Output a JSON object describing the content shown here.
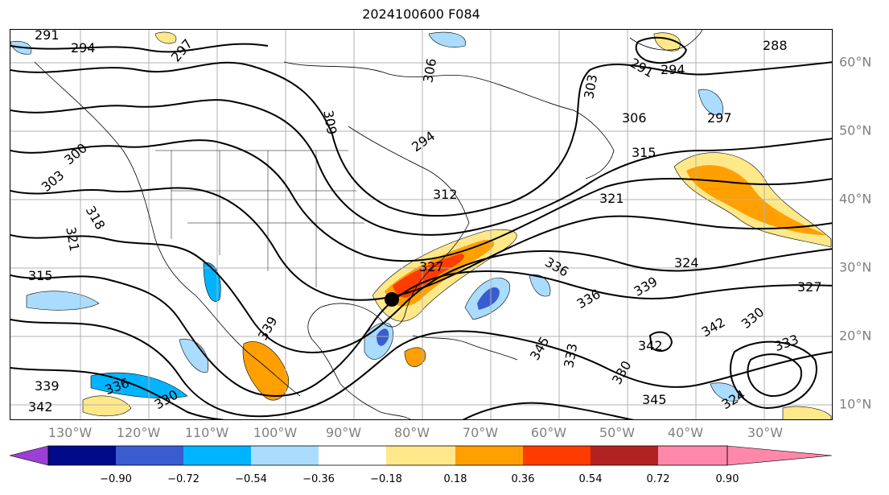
{
  "title": "2024100600 F084",
  "longitude_labels": [
    "130°W",
    "120°W",
    "110°W",
    "100°W",
    "90°W",
    "80°W",
    "70°W",
    "60°W",
    "50°W",
    "40°W",
    "30°W"
  ],
  "latitude_labels": [
    "60°N",
    "50°N",
    "40°N",
    "30°N",
    "20°N",
    "10°N"
  ],
  "contour_labels": [
    "291",
    "294",
    "297",
    "300",
    "303",
    "306",
    "309",
    "312",
    "315",
    "318",
    "321",
    "324",
    "327",
    "330",
    "333",
    "336",
    "339",
    "342",
    "345",
    "288",
    "291",
    "294",
    "297",
    "303",
    "306",
    "315",
    "321",
    "336",
    "339",
    "342",
    "345",
    "330",
    "333",
    "327",
    "324",
    "330",
    "336",
    "339",
    "342",
    "300",
    "294",
    "297",
    "291"
  ],
  "colorbar": {
    "ticks": [
      "−0.90",
      "−0.72",
      "−0.54",
      "−0.36",
      "−0.18",
      "0.18",
      "0.36",
      "0.54",
      "0.72",
      "0.90"
    ],
    "colors": [
      "#9b3fd6",
      "#000a8a",
      "#3a5cd1",
      "#00b4ff",
      "#aadcff",
      "#ffffff",
      "#ffe88a",
      "#ffa000",
      "#ff3c00",
      "#b22222",
      "#ff88aa"
    ]
  },
  "fill_colors": {
    "orange": "#ffa000",
    "light_orange": "#ffe88a",
    "red_orange": "#ff3c00",
    "blue": "#00b4ff",
    "light_blue": "#aadcff",
    "medium_blue": "#3a5cd1"
  }
}
